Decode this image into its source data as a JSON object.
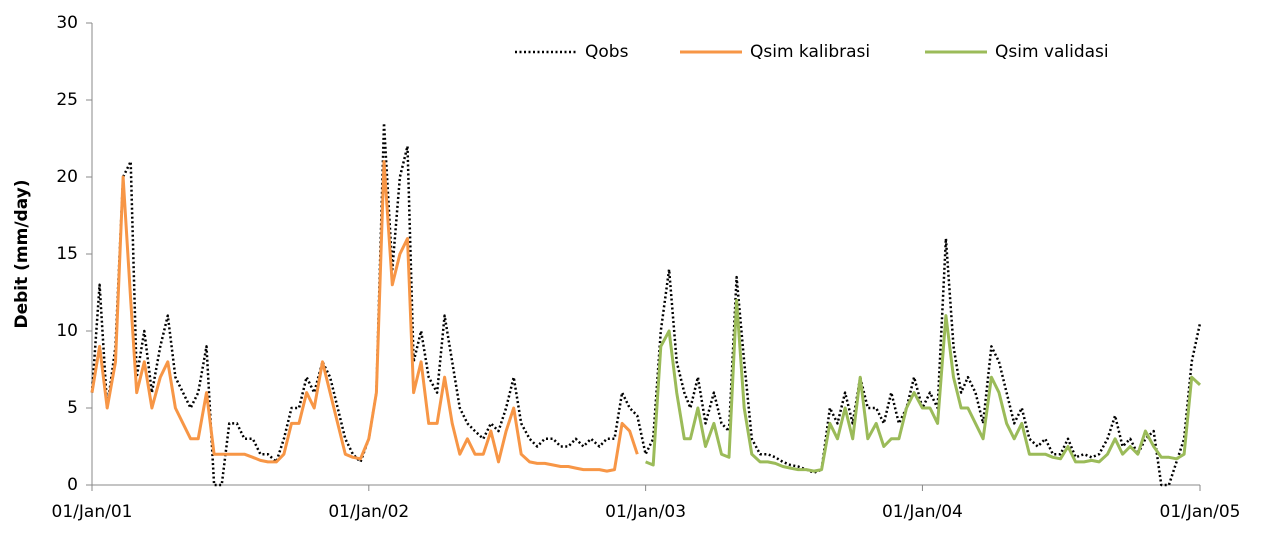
{
  "chart_data": {
    "type": "line",
    "y_label": "Debit (mm/day)",
    "ylim": [
      0,
      30
    ],
    "yticks": [
      0,
      5,
      10,
      15,
      20,
      25,
      30
    ],
    "xlim": [
      "01/Jan/01",
      "01/Jan/05"
    ],
    "xticks": [
      "01/Jan/01",
      "01/Jan/02",
      "01/Jan/03",
      "01/Jan/04",
      "01/Jan/05"
    ],
    "legend": "top-right",
    "grid": false,
    "x": [
      "01/Jan/01",
      "11/Jan/01",
      "21/Jan/01",
      "01/Feb/01",
      "11/Feb/01",
      "21/Feb/01",
      "01/Mar/01",
      "11/Mar/01",
      "21/Mar/01",
      "01/Apr/01",
      "11/Apr/01",
      "21/Apr/01",
      "01/May/01",
      "11/May/01",
      "21/May/01",
      "01/Jun/01",
      "11/Jun/01",
      "21/Jun/01",
      "01/Jul/01",
      "11/Jul/01",
      "21/Jul/01",
      "01/Aug/01",
      "11/Aug/01",
      "21/Aug/01",
      "01/Sep/01",
      "11/Sep/01",
      "21/Sep/01",
      "01/Oct/01",
      "11/Oct/01",
      "21/Oct/01",
      "01/Nov/01",
      "11/Nov/01",
      "21/Nov/01",
      "01/Dec/01",
      "11/Dec/01",
      "21/Dec/01",
      "01/Jan/02",
      "11/Jan/02",
      "21/Jan/02",
      "01/Feb/02",
      "11/Feb/02",
      "21/Feb/02",
      "01/Mar/02",
      "11/Mar/02",
      "21/Mar/02",
      "01/Apr/02",
      "11/Apr/02",
      "21/Apr/02",
      "01/May/02",
      "11/May/02",
      "21/May/02",
      "01/Jun/02",
      "11/Jun/02",
      "21/Jun/02",
      "01/Jul/02",
      "11/Jul/02",
      "21/Jul/02",
      "01/Aug/02",
      "11/Aug/02",
      "21/Aug/02",
      "01/Sep/02",
      "11/Sep/02",
      "21/Sep/02",
      "01/Oct/02",
      "11/Oct/02",
      "21/Oct/02",
      "01/Nov/02",
      "11/Nov/02",
      "21/Nov/02",
      "01/Dec/02",
      "11/Dec/02",
      "21/Dec/02",
      "01/Jan/03",
      "11/Jan/03",
      "21/Jan/03",
      "01/Feb/03",
      "11/Feb/03",
      "21/Feb/03",
      "01/Mar/03",
      "11/Mar/03",
      "21/Mar/03",
      "01/Apr/03",
      "11/Apr/03",
      "21/Apr/03",
      "01/May/03",
      "11/May/03",
      "21/May/03",
      "01/Jun/03",
      "11/Jun/03",
      "21/Jun/03",
      "01/Jul/03",
      "11/Jul/03",
      "21/Jul/03",
      "01/Aug/03",
      "11/Aug/03",
      "21/Aug/03",
      "01/Sep/03",
      "11/Sep/03",
      "21/Sep/03",
      "01/Oct/03",
      "11/Oct/03",
      "21/Oct/03",
      "01/Nov/03",
      "11/Nov/03",
      "21/Nov/03",
      "01/Dec/03",
      "11/Dec/03",
      "21/Dec/03",
      "01/Jan/04",
      "11/Jan/04",
      "21/Jan/04",
      "01/Feb/04",
      "11/Feb/04",
      "21/Feb/04",
      "01/Mar/04",
      "11/Mar/04",
      "21/Mar/04",
      "01/Apr/04",
      "11/Apr/04",
      "21/Apr/04",
      "01/May/04",
      "11/May/04",
      "21/May/04",
      "01/Jun/04",
      "11/Jun/04",
      "21/Jun/04",
      "01/Jul/04",
      "11/Jul/04",
      "21/Jul/04",
      "01/Aug/04",
      "11/Aug/04",
      "21/Aug/04",
      "01/Sep/04",
      "11/Sep/04",
      "21/Sep/04",
      "01/Oct/04",
      "11/Oct/04",
      "21/Oct/04",
      "01/Nov/04",
      "11/Nov/04",
      "21/Nov/04",
      "01/Dec/04",
      "11/Dec/04",
      "21/Dec/04",
      "01/Jan/05"
    ],
    "series": [
      {
        "name": "Qobs",
        "color": "#000000",
        "dash": "dotted",
        "values": [
          6,
          13,
          5,
          9,
          20,
          21,
          7,
          10,
          6,
          9,
          11,
          7,
          6,
          5,
          6,
          9,
          0,
          0,
          4,
          4,
          3,
          3,
          2,
          2,
          1.5,
          3,
          5,
          5,
          7,
          6,
          8,
          7,
          5,
          3,
          2,
          1.5,
          3,
          6,
          23.5,
          14,
          20,
          22,
          8,
          10,
          7,
          6,
          11,
          8,
          5,
          4,
          3.5,
          3,
          4,
          3.5,
          5,
          7,
          4,
          3,
          2.5,
          3,
          3,
          2.5,
          2.5,
          3,
          2.5,
          3,
          2.5,
          3,
          3,
          6,
          5,
          4.5,
          2,
          3,
          10,
          14,
          8,
          6,
          5,
          7,
          4,
          6,
          4,
          3.5,
          13.5,
          8,
          3,
          2,
          2,
          1.8,
          1.5,
          1.3,
          1.2,
          1,
          0.8,
          1,
          5,
          4,
          6,
          4,
          7,
          5,
          5,
          4,
          6,
          4,
          5,
          7,
          5,
          6,
          5,
          16,
          9,
          6,
          7,
          6,
          4,
          9,
          8,
          6,
          4,
          5,
          3,
          2.5,
          3,
          2,
          2,
          3,
          1.8,
          2,
          1.8,
          2,
          3,
          4.5,
          2.5,
          3,
          2,
          3,
          3.5,
          0,
          0,
          1.5,
          3,
          8,
          10.5
        ]
      },
      {
        "name": "Qsim kalibrasi",
        "color": "#f79646",
        "values": [
          6,
          9,
          5,
          8,
          20,
          12,
          6,
          8,
          5,
          7,
          8,
          5,
          4,
          3,
          3,
          6,
          2,
          2,
          2,
          2,
          2,
          1.8,
          1.6,
          1.5,
          1.5,
          2,
          4,
          4,
          6,
          5,
          8,
          6,
          4,
          2,
          1.8,
          1.7,
          3,
          6,
          21,
          13,
          15,
          16,
          6,
          8,
          4,
          4,
          7,
          4,
          2,
          3,
          2,
          2,
          3.5,
          1.5,
          3.5,
          5,
          2,
          1.5,
          1.4,
          1.4,
          1.3,
          1.2,
          1.2,
          1.1,
          1,
          1,
          1,
          0.9,
          1,
          4,
          3.5,
          2,
          null,
          null,
          null,
          null,
          null,
          null,
          null,
          null,
          null,
          null,
          null,
          null,
          null,
          null,
          null,
          null,
          null,
          null,
          null,
          null,
          null,
          null,
          null,
          null,
          null,
          null,
          null,
          null,
          null,
          null,
          null,
          null,
          null,
          null,
          null,
          null,
          null,
          null,
          null,
          null,
          null,
          null,
          null,
          null,
          null,
          null,
          null,
          null,
          null,
          null,
          null,
          null,
          null,
          null,
          null,
          null,
          null,
          null,
          null,
          null,
          null,
          null,
          null,
          null,
          null,
          null,
          null,
          null,
          null,
          null,
          null,
          null,
          null
        ]
      },
      {
        "name": "Qsim validasi",
        "color": "#9bbb59",
        "values": [
          null,
          null,
          null,
          null,
          null,
          null,
          null,
          null,
          null,
          null,
          null,
          null,
          null,
          null,
          null,
          null,
          null,
          null,
          null,
          null,
          null,
          null,
          null,
          null,
          null,
          null,
          null,
          null,
          null,
          null,
          null,
          null,
          null,
          null,
          null,
          null,
          null,
          null,
          null,
          null,
          null,
          null,
          null,
          null,
          null,
          null,
          null,
          null,
          null,
          null,
          null,
          null,
          null,
          null,
          null,
          null,
          null,
          null,
          null,
          null,
          null,
          null,
          null,
          null,
          null,
          null,
          null,
          null,
          null,
          null,
          null,
          null,
          1.5,
          1.3,
          9,
          10,
          6,
          3,
          3,
          5,
          2.5,
          4,
          2,
          1.8,
          12,
          5,
          2,
          1.5,
          1.5,
          1.4,
          1.2,
          1.1,
          1,
          1,
          0.9,
          1,
          4,
          3,
          5,
          3,
          7,
          3,
          4,
          2.5,
          3,
          3,
          5,
          6,
          5,
          5,
          4,
          11,
          7,
          5,
          5,
          4,
          3,
          7,
          6,
          4,
          3,
          4,
          2,
          2,
          2,
          1.8,
          1.7,
          2.5,
          1.5,
          1.5,
          1.6,
          1.5,
          2,
          3,
          2,
          2.5,
          2,
          3.5,
          2.5,
          1.8,
          1.8,
          1.7,
          2,
          7,
          6.5
        ]
      }
    ]
  }
}
